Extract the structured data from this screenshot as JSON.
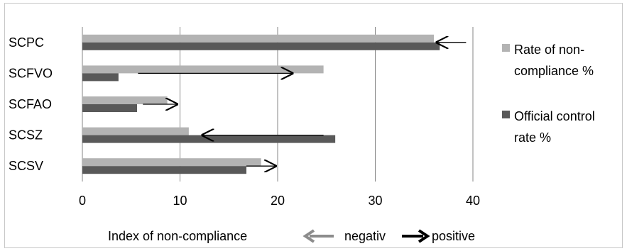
{
  "chart_data": {
    "type": "bar",
    "orientation": "horizontal",
    "categories": [
      "SCPC",
      "SCFVO",
      "SCFAO",
      "SCSZ",
      "SCSV"
    ],
    "series": [
      {
        "name": "Rate of non-compliance %",
        "values": [
          36,
          24.7,
          8.7,
          10.9,
          18.3
        ],
        "color": "#b3b3b3"
      },
      {
        "name": "Official control rate %",
        "values": [
          36.6,
          3.7,
          5.6,
          25.9,
          16.8
        ],
        "color": "#595959"
      }
    ],
    "xlim": [
      0,
      40
    ],
    "xticks": [
      0,
      10,
      20,
      30,
      40
    ],
    "grid": true,
    "legend_position": "right",
    "legend_lines": [
      [
        "Rate of non-",
        "compliance %"
      ],
      [
        "Official control",
        "rate %"
      ]
    ],
    "arrows": [
      {
        "category": "SCPC",
        "from": 39.3,
        "to": 36.3
      },
      {
        "category": "SCFVO",
        "from": 5.7,
        "to": 21.5
      },
      {
        "category": "SCFAO",
        "from": 6.2,
        "to": 9.7
      },
      {
        "category": "SCSZ",
        "from": 24.7,
        "to": 12.3
      },
      {
        "category": "SCSV",
        "from": 16.8,
        "to": 19.8
      }
    ],
    "footer": {
      "label": "Index of non-compliance",
      "negative_label": "negativ",
      "positive_label": "positive",
      "negative_color": "#8c8c8c",
      "positive_color": "#000000"
    }
  }
}
